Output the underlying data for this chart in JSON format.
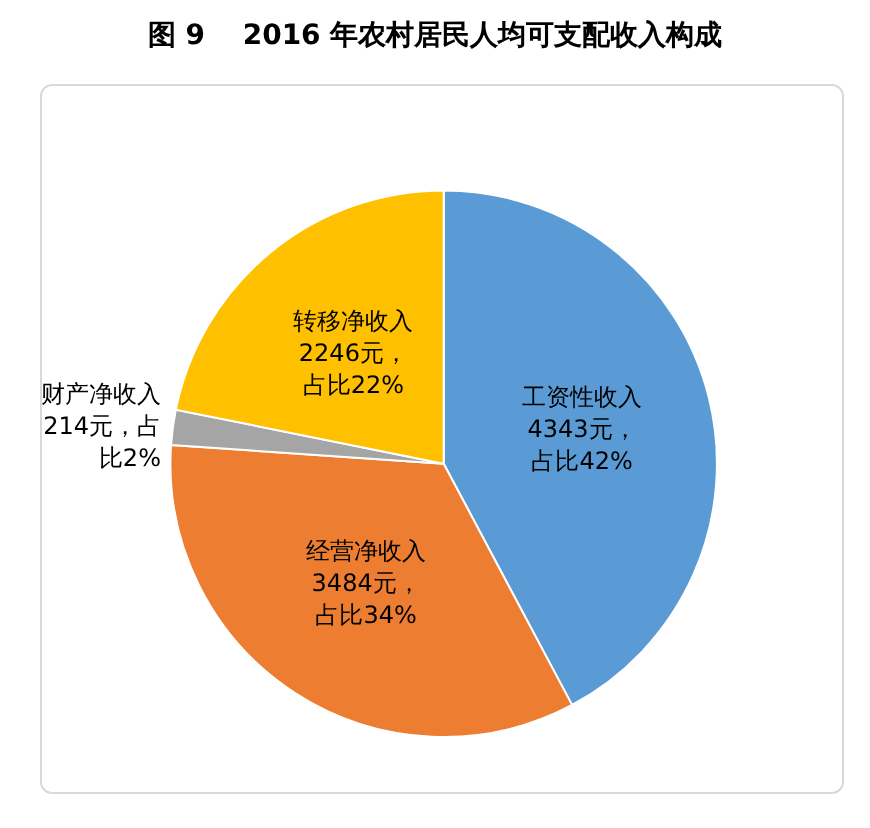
{
  "chart_data": {
    "type": "pie",
    "title": "图 9　 2016 年农村居民人均可支配收入构成",
    "categories": [
      "工资性收入",
      "经营净收入",
      "财产净收入",
      "转移净收入"
    ],
    "values": [
      4343,
      3484,
      214,
      2246
    ],
    "colors": [
      "#5b9bd5",
      "#ed7d31",
      "#a5a5a5",
      "#ffc000"
    ],
    "value_labels": [
      "4343元，占比42%",
      "3484元，占比34%",
      "214元，占比2%",
      "2246元，占比22%"
    ],
    "legend": false
  }
}
